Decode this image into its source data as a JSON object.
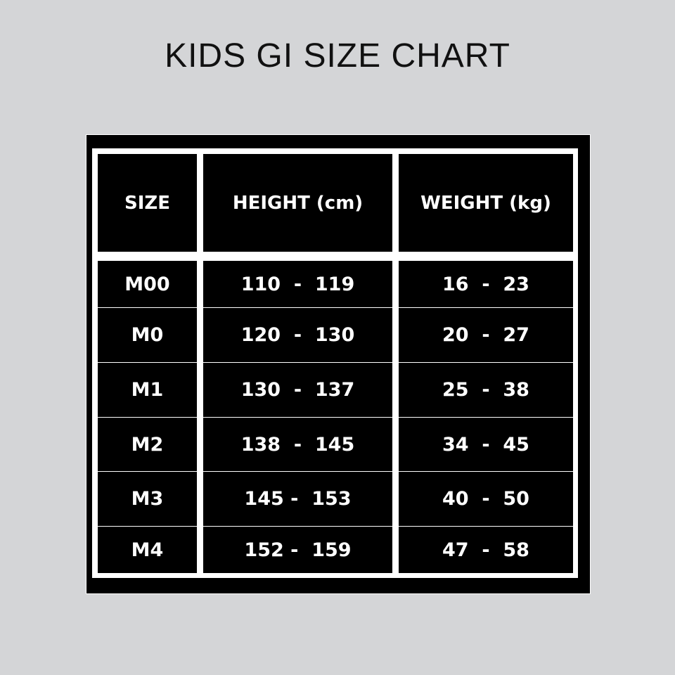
{
  "title": "KIDS GI SIZE CHART",
  "table": {
    "headers": [
      "SIZE",
      "HEIGHT (cm)",
      "WEIGHT (kg)"
    ],
    "rows": [
      [
        "M00",
        "110  -  119",
        "16  -  23"
      ],
      [
        "M0",
        "120  -  130",
        "20  -  27"
      ],
      [
        "M1",
        "130  -  137",
        "25  -  38"
      ],
      [
        "M2",
        "138  -  145",
        "34  -  45"
      ],
      [
        "M3",
        "145 -  153",
        "40  -  50"
      ],
      [
        "M4",
        "152 -  159",
        "47  -  58"
      ]
    ]
  },
  "colors": {
    "background": "#d4d5d7",
    "table": "#000000",
    "lines": "#ffffff"
  }
}
